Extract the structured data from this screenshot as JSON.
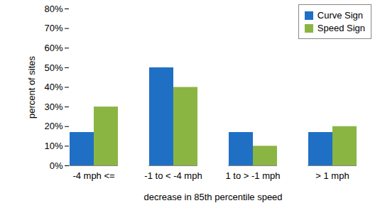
{
  "chart_data": {
    "type": "bar",
    "categories": [
      "-4 mph <=",
      "-1 to < -4 mph",
      "1 to > -1 mph",
      "> 1 mph"
    ],
    "series": [
      {
        "name": "Curve Sign",
        "color": "#1f6fc4",
        "values": [
          17,
          50,
          17,
          17
        ]
      },
      {
        "name": "Speed Sign",
        "color": "#8bb543",
        "values": [
          30,
          40,
          10,
          20
        ]
      }
    ],
    "x_label": "decrease in 85th percentile speed",
    "y_label": "percent of sites",
    "ylim": [
      0,
      80
    ],
    "yticks": [
      {
        "value": 0,
        "label": "0%"
      },
      {
        "value": 10,
        "label": "10%"
      },
      {
        "value": 20,
        "label": "20%"
      },
      {
        "value": 30,
        "label": "30%"
      },
      {
        "value": 40,
        "label": "40%"
      },
      {
        "value": 50,
        "label": "50%"
      },
      {
        "value": 60,
        "label": "60%"
      },
      {
        "value": 70,
        "label": "70%"
      },
      {
        "value": 80,
        "label": "80%"
      }
    ],
    "grid": false,
    "legend": "top-right"
  }
}
